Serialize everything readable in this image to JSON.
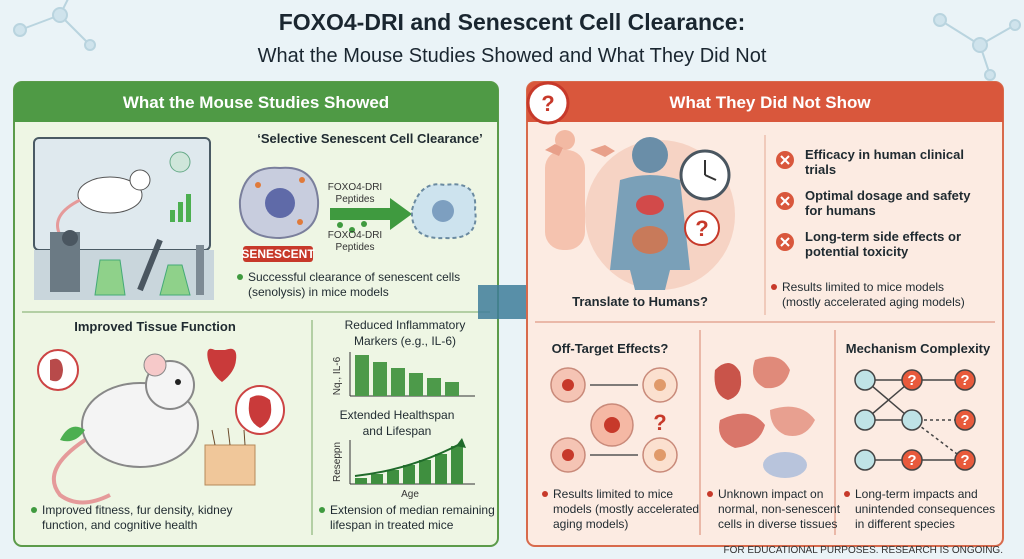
{
  "header": {
    "title": "FOXO4-DRI and Senescent Cell Clearance:",
    "subtitle": "What the Mouse Studies Showed and What They Did Not"
  },
  "question_mark": "?",
  "left_panel": {
    "heading": "What the Mouse Studies Showed",
    "clearance": {
      "title": "‘Selective Senescent Cell Clearance’",
      "peptide_label_top": [
        "FOXO4-DRI",
        "Peptides"
      ],
      "peptide_label_bottom": [
        "FOXO4-DRI",
        "Peptides"
      ],
      "cell_label": "SENESCENT",
      "bullet": [
        "Successful clearance of senescent cells",
        "(senolysis) in mice models"
      ]
    },
    "tissue": {
      "title": "Improved Tissue Function",
      "bullet": [
        "Improved fitness, fur density, kidney",
        "function, and cognitive health"
      ]
    },
    "inflammation": {
      "title": [
        "Reduced Inflammatory",
        "Markers (e.g., IL-6)"
      ],
      "axis_label": "Nq., IL-6"
    },
    "lifespan": {
      "title": [
        "Extended Healthspan",
        "and Lifespan"
      ],
      "y_label": "Reseppn",
      "x_label": "Age",
      "bullet": [
        "Extension of median remaining",
        "lifespan in treated mice"
      ]
    }
  },
  "right_panel": {
    "heading": "What They Did Not Show",
    "human": {
      "caption": "Translate to Humans?",
      "items": [
        [
          "Efficacy in human clinical",
          "trials"
        ],
        [
          "Optimal dosage and safety",
          "for humans"
        ],
        [
          "Long-term side effects or",
          "potential toxicity"
        ]
      ],
      "bullet": [
        "Results limited to mice models",
        "(mostly accelerated aging models)"
      ]
    },
    "off_target": {
      "title": "Off-Target Effects?",
      "bullet": [
        "Results limited to mice",
        "models (mostly accelerated",
        "aging models)"
      ]
    },
    "unknown_impact": {
      "bullet": [
        "Unknown impact on",
        "normal, non-senescent",
        "cells in diverse tissues"
      ]
    },
    "mechanism": {
      "title": "Mechanism Complexity",
      "bullet": [
        "Long-term impacts and",
        "unintended consequences",
        "in different species"
      ]
    }
  },
  "footer": "FOR EDUCATIONAL PURPOSES. RESEARCH IS ONGOING."
}
